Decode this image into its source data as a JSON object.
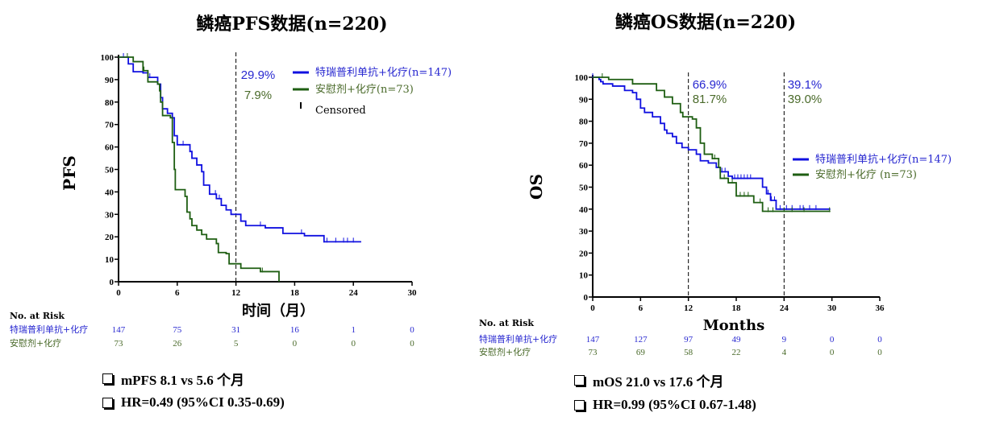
{
  "colors": {
    "treatment": "#1010e0",
    "placebo": "#1e5e12",
    "treatment_text": "#2828d0",
    "placebo_text": "#4a6a2a"
  },
  "chart_data": [
    {
      "type": "line",
      "step": true,
      "title": "鳞癌PFS数据(n=220)",
      "ylabel": "PFS",
      "xlabel": "时间（月）",
      "xlim": [
        0,
        30
      ],
      "ylim": [
        0,
        100
      ],
      "xticks": [
        0,
        6,
        12,
        18,
        24,
        30
      ],
      "yticks": [
        0,
        10,
        20,
        30,
        40,
        50,
        60,
        70,
        80,
        90,
        100
      ],
      "reference_lines_x": [
        12
      ],
      "annotations": [
        {
          "text": "29.9%",
          "series": "treatment"
        },
        {
          "text": "7.9%",
          "series": "placebo"
        }
      ],
      "legend": {
        "placement": "top-right",
        "entries": [
          "特瑞普利单抗+化疗(n=147)",
          "安慰剂+化疗(n=73)"
        ],
        "censored_label": "Censored"
      },
      "series": [
        {
          "name": "特瑞普利单抗+化疗(n=147)",
          "key": "treatment",
          "points": [
            [
              0,
              100
            ],
            [
              1,
              97
            ],
            [
              1.5,
              93.5
            ],
            [
              2.5,
              93
            ],
            [
              3,
              91
            ],
            [
              4,
              88
            ],
            [
              4.3,
              82
            ],
            [
              4.5,
              77
            ],
            [
              5,
              75
            ],
            [
              5.5,
              73
            ],
            [
              5.7,
              65
            ],
            [
              6,
              61
            ],
            [
              7,
              61
            ],
            [
              7.3,
              58
            ],
            [
              7.5,
              55
            ],
            [
              8,
              52
            ],
            [
              8.5,
              49
            ],
            [
              8.7,
              43
            ],
            [
              9.3,
              39
            ],
            [
              10,
              37
            ],
            [
              10.5,
              34
            ],
            [
              11,
              32
            ],
            [
              11.5,
              30
            ],
            [
              12.5,
              27
            ],
            [
              13,
              25
            ],
            [
              15,
              24
            ],
            [
              16.8,
              21.5
            ],
            [
              19,
              20.5
            ],
            [
              21,
              17.8
            ],
            [
              24.8,
              17.8
            ]
          ],
          "censored": [
            0.5,
            2.5,
            3.2,
            5,
            6.6,
            8,
            9.9,
            10.3,
            14.5,
            18.7,
            21,
            21.3,
            22.2,
            23,
            23.4,
            24
          ]
        },
        {
          "name": "安慰剂+化疗(n=73)",
          "key": "placebo",
          "points": [
            [
              0,
              100
            ],
            [
              1.3,
              100
            ],
            [
              1.5,
              98
            ],
            [
              2.5,
              94
            ],
            [
              3,
              89
            ],
            [
              4,
              88
            ],
            [
              4.2,
              85
            ],
            [
              4.3,
              80
            ],
            [
              4.5,
              74
            ],
            [
              5.3,
              73
            ],
            [
              5.5,
              62
            ],
            [
              5.7,
              50
            ],
            [
              5.8,
              41
            ],
            [
              6.6,
              41
            ],
            [
              6.8,
              38
            ],
            [
              7,
              31
            ],
            [
              7.3,
              28
            ],
            [
              7.5,
              25
            ],
            [
              8,
              23
            ],
            [
              8.5,
              21
            ],
            [
              9,
              19
            ],
            [
              10,
              17
            ],
            [
              10.2,
              13
            ],
            [
              11,
              12.5
            ],
            [
              11.3,
              8
            ],
            [
              12.5,
              6
            ],
            [
              14.5,
              4.5
            ],
            [
              16.4,
              4.5
            ],
            [
              16.4,
              0
            ]
          ],
          "censored": [
            0.9,
            2.6,
            14.7
          ]
        }
      ],
      "risk_table": {
        "title": "No. at Risk",
        "times": [
          0,
          6,
          12,
          18,
          24,
          30
        ],
        "rows": [
          {
            "label": "特瑞普利单抗+化疗",
            "key": "treatment",
            "values": [
              "147",
              "75",
              "31",
              "16",
              "1",
              "0"
            ]
          },
          {
            "label": "安慰剂+化疗",
            "key": "placebo",
            "values": [
              "73",
              "26",
              "5",
              "0",
              "0",
              "0"
            ]
          }
        ]
      },
      "notes": [
        "mPFS 8.1 vs 5.6 个月",
        "HR=0.49 (95%CI 0.35-0.69)"
      ]
    },
    {
      "type": "line",
      "step": true,
      "title": "鳞癌OS数据(n=220)",
      "ylabel": "OS",
      "xlabel": "Months",
      "xlim": [
        0,
        36
      ],
      "ylim": [
        0,
        100
      ],
      "xticks": [
        0,
        6,
        12,
        18,
        24,
        30,
        36
      ],
      "yticks": [
        0,
        10,
        20,
        30,
        40,
        50,
        60,
        70,
        80,
        90,
        100
      ],
      "reference_lines_x": [
        12,
        24
      ],
      "annotations": [
        {
          "text": "66.9%",
          "series": "treatment",
          "at": 12
        },
        {
          "text": "81.7%",
          "series": "placebo",
          "at": 12
        },
        {
          "text": "39.1%",
          "series": "treatment",
          "at": 24
        },
        {
          "text": "39.0%",
          "series": "placebo",
          "at": 24
        }
      ],
      "legend": {
        "placement": "right",
        "entries": [
          "特瑞普利单抗+化疗(n=147)",
          "安慰剂+化疗 (n=73)"
        ]
      },
      "series": [
        {
          "name": "特瑞普利单抗+化疗(n=147)",
          "key": "treatment",
          "points": [
            [
              0,
              100
            ],
            [
              0.8,
              99
            ],
            [
              1,
              98
            ],
            [
              1.3,
              97
            ],
            [
              2.5,
              96
            ],
            [
              4,
              94
            ],
            [
              5,
              93
            ],
            [
              5.5,
              90
            ],
            [
              6,
              86
            ],
            [
              6.5,
              84
            ],
            [
              7.5,
              82
            ],
            [
              8.5,
              79
            ],
            [
              9,
              76
            ],
            [
              9.3,
              74.5
            ],
            [
              10,
              73
            ],
            [
              10.5,
              70
            ],
            [
              11.2,
              68
            ],
            [
              12,
              67
            ],
            [
              13,
              65
            ],
            [
              13.5,
              62
            ],
            [
              14.5,
              61
            ],
            [
              15.5,
              59
            ],
            [
              16,
              57
            ],
            [
              17,
              55
            ],
            [
              17.5,
              54
            ],
            [
              21,
              54
            ],
            [
              21.3,
              50
            ],
            [
              21.8,
              47
            ],
            [
              22.3,
              44
            ],
            [
              23,
              40
            ],
            [
              29.8,
              40
            ]
          ],
          "censored": [
            0,
            15.8,
            16.2,
            16.6,
            17,
            17.8,
            18.2,
            18.6,
            19,
            19.4,
            19.8,
            22,
            22.4,
            22.8,
            23.5,
            24.3,
            25,
            26,
            26.4,
            27.2,
            28
          ]
        },
        {
          "name": "安慰剂+化疗 (n=73)",
          "key": "placebo",
          "points": [
            [
              0,
              100
            ],
            [
              2,
              99
            ],
            [
              5,
              97
            ],
            [
              8,
              94
            ],
            [
              9,
              91
            ],
            [
              10,
              88
            ],
            [
              11,
              84
            ],
            [
              11.3,
              82
            ],
            [
              12.5,
              81
            ],
            [
              13,
              77
            ],
            [
              13.5,
              70
            ],
            [
              14,
              65
            ],
            [
              15,
              63
            ],
            [
              15.8,
              59
            ],
            [
              16,
              54
            ],
            [
              17,
              52
            ],
            [
              18,
              46
            ],
            [
              20,
              46
            ],
            [
              20.2,
              43
            ],
            [
              21.3,
              39
            ],
            [
              29.8,
              39
            ]
          ],
          "censored": [
            1.2,
            5,
            15,
            15.3,
            16.5,
            17.5,
            18.5,
            19,
            19.5,
            21,
            22,
            22.6,
            24,
            25,
            26.5,
            29.7
          ]
        }
      ],
      "risk_table": {
        "title": "No. at Risk",
        "times": [
          0,
          6,
          12,
          18,
          24,
          30,
          36
        ],
        "rows": [
          {
            "label": "特瑞普利单抗+化疗",
            "key": "treatment",
            "values": [
              "147",
              "127",
              "97",
              "49",
              "9",
              "0",
              "0"
            ]
          },
          {
            "label": "安慰剂+化疗",
            "key": "placebo",
            "values": [
              "73",
              "69",
              "58",
              "22",
              "4",
              "0",
              "0"
            ]
          }
        ]
      },
      "notes": [
        "mOS 21.0 vs 17.6 个月",
        "HR=0.99 (95%CI 0.67-1.48)"
      ]
    }
  ]
}
